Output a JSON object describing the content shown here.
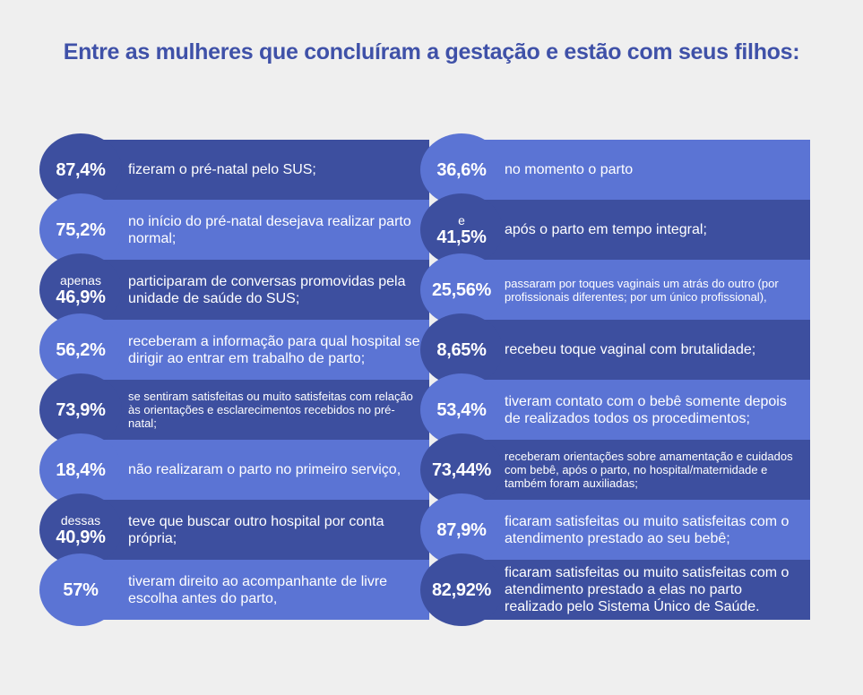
{
  "title": "Entre as mulheres que concluíram a gestação e estão com seus filhos:",
  "left_items": [
    {
      "prefix": "",
      "value": "87,4%",
      "text": "fizeram o pré-natal pelo SUS;"
    },
    {
      "prefix": "",
      "value": "75,2%",
      "text": "no início do pré-natal desejava realizar parto normal;"
    },
    {
      "prefix": "apenas",
      "value": "46,9%",
      "text": "participaram de conversas promovidas pela unidade de saúde do SUS;"
    },
    {
      "prefix": "",
      "value": "56,2%",
      "text": "receberam a informação para qual hospital se dirigir ao entrar em trabalho de parto;"
    },
    {
      "prefix": "",
      "value": "73,9%",
      "text": "se sentiram satisfeitas ou muito satisfeitas com relação às orientações e esclarecimentos recebidos no pré-natal;"
    },
    {
      "prefix": "",
      "value": "18,4%",
      "text": "não realizaram o parto no primeiro serviço,"
    },
    {
      "prefix": "dessas",
      "value": "40,9%",
      "text": "teve que buscar outro hospital por conta própria;"
    },
    {
      "prefix": "",
      "value": "57%",
      "text": "tiveram direito ao acompanhante de livre escolha antes do parto,"
    }
  ],
  "right_items": [
    {
      "prefix": "",
      "value": "36,6%",
      "text": "no momento o parto"
    },
    {
      "prefix": "e",
      "value": "41,5%",
      "text": "após o parto em tempo integral;"
    },
    {
      "prefix": "",
      "value": "25,56%",
      "text": "passaram por toques vaginais um atrás do outro (por profissionais diferentes; por um único profissional),"
    },
    {
      "prefix": "",
      "value": "8,65%",
      "text": "recebeu toque vaginal com brutalidade;"
    },
    {
      "prefix": "",
      "value": "53,4%",
      "text": "tiveram contato com o bebê somente depois de realizados todos os procedimentos;"
    },
    {
      "prefix": "",
      "value": "73,44%",
      "text": "receberam orientações sobre amamentação e cuidados com bebê, após o parto, no hospital/maternidade e também foram auxiliadas;"
    },
    {
      "prefix": "",
      "value": "87,9%",
      "text": "ficaram satisfeitas ou muito satisfeitas com o atendimento prestado ao seu bebê;"
    },
    {
      "prefix": "",
      "value": "82,92%",
      "text": "ficaram satisfeitas ou muito satisfeitas com o atendimento prestado a elas no parto realizado pelo Sistema Único de Saúde."
    }
  ],
  "colors": {
    "title": "#3f51a8",
    "dark_band": "#3d4f9f",
    "light_band": "#5b74d4",
    "background": "#efefef"
  }
}
